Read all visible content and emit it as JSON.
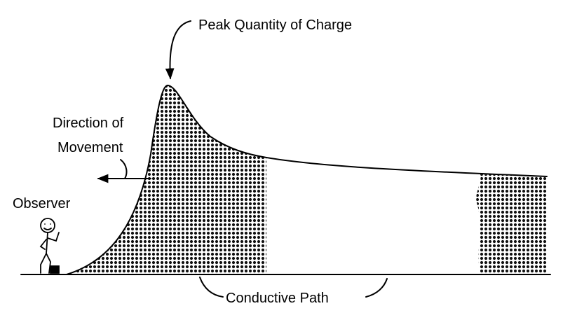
{
  "labels": {
    "peak": "Peak Quantity of Charge",
    "direction_line1": "Direction of",
    "direction_line2": "Movement",
    "observer": "Observer",
    "path": "Conductive Path"
  }
}
